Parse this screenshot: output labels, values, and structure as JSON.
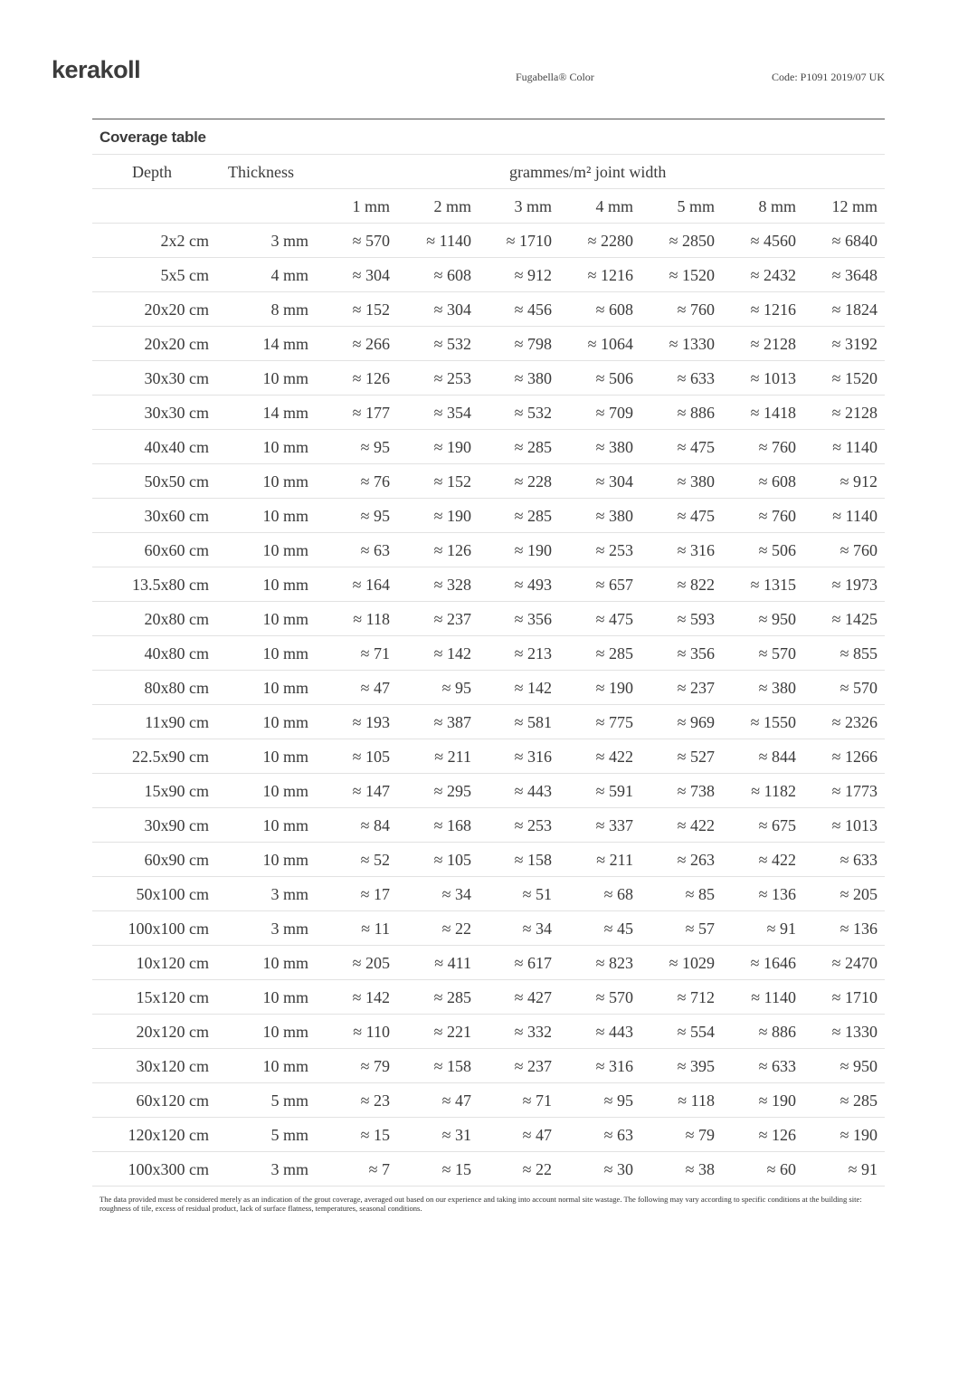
{
  "header": {
    "logo": "kerakoll",
    "product": "Fugabella® Color",
    "code": "Code: P1091 2019/07 UK"
  },
  "table": {
    "title": "Coverage table",
    "col_depth": "Depth",
    "col_thickness": "Thickness",
    "col_group": "grammes/m² joint width",
    "widths": [
      "1 mm",
      "2 mm",
      "3 mm",
      "4 mm",
      "5 mm",
      "8 mm",
      "12 mm"
    ],
    "rows": [
      {
        "depth": "2x2 cm",
        "thickness": "3 mm",
        "values": [
          "≈ 570",
          "≈ 1140",
          "≈ 1710",
          "≈ 2280",
          "≈ 2850",
          "≈ 4560",
          "≈ 6840"
        ]
      },
      {
        "depth": "5x5 cm",
        "thickness": "4 mm",
        "values": [
          "≈ 304",
          "≈ 608",
          "≈ 912",
          "≈ 1216",
          "≈ 1520",
          "≈ 2432",
          "≈ 3648"
        ]
      },
      {
        "depth": "20x20 cm",
        "thickness": "8 mm",
        "values": [
          "≈ 152",
          "≈ 304",
          "≈ 456",
          "≈ 608",
          "≈ 760",
          "≈ 1216",
          "≈ 1824"
        ]
      },
      {
        "depth": "20x20 cm",
        "thickness": "14 mm",
        "values": [
          "≈ 266",
          "≈ 532",
          "≈ 798",
          "≈ 1064",
          "≈ 1330",
          "≈ 2128",
          "≈ 3192"
        ]
      },
      {
        "depth": "30x30 cm",
        "thickness": "10 mm",
        "values": [
          "≈ 126",
          "≈ 253",
          "≈ 380",
          "≈ 506",
          "≈ 633",
          "≈ 1013",
          "≈ 1520"
        ]
      },
      {
        "depth": "30x30 cm",
        "thickness": "14 mm",
        "values": [
          "≈ 177",
          "≈ 354",
          "≈ 532",
          "≈ 709",
          "≈ 886",
          "≈ 1418",
          "≈ 2128"
        ]
      },
      {
        "depth": "40x40 cm",
        "thickness": "10 mm",
        "values": [
          "≈ 95",
          "≈ 190",
          "≈ 285",
          "≈ 380",
          "≈ 475",
          "≈ 760",
          "≈ 1140"
        ]
      },
      {
        "depth": "50x50 cm",
        "thickness": "10 mm",
        "values": [
          "≈ 76",
          "≈ 152",
          "≈ 228",
          "≈ 304",
          "≈ 380",
          "≈ 608",
          "≈ 912"
        ]
      },
      {
        "depth": "30x60 cm",
        "thickness": "10 mm",
        "values": [
          "≈ 95",
          "≈ 190",
          "≈ 285",
          "≈ 380",
          "≈ 475",
          "≈ 760",
          "≈ 1140"
        ]
      },
      {
        "depth": "60x60 cm",
        "thickness": "10 mm",
        "values": [
          "≈ 63",
          "≈ 126",
          "≈ 190",
          "≈ 253",
          "≈ 316",
          "≈ 506",
          "≈ 760"
        ]
      },
      {
        "depth": "13.5x80 cm",
        "thickness": "10 mm",
        "values": [
          "≈ 164",
          "≈ 328",
          "≈ 493",
          "≈ 657",
          "≈ 822",
          "≈ 1315",
          "≈ 1973"
        ]
      },
      {
        "depth": "20x80 cm",
        "thickness": "10 mm",
        "values": [
          "≈ 118",
          "≈ 237",
          "≈ 356",
          "≈ 475",
          "≈ 593",
          "≈ 950",
          "≈ 1425"
        ]
      },
      {
        "depth": "40x80 cm",
        "thickness": "10 mm",
        "values": [
          "≈ 71",
          "≈ 142",
          "≈ 213",
          "≈ 285",
          "≈ 356",
          "≈ 570",
          "≈ 855"
        ]
      },
      {
        "depth": "80x80 cm",
        "thickness": "10 mm",
        "values": [
          "≈ 47",
          "≈ 95",
          "≈ 142",
          "≈ 190",
          "≈ 237",
          "≈ 380",
          "≈ 570"
        ]
      },
      {
        "depth": "11x90 cm",
        "thickness": "10 mm",
        "values": [
          "≈ 193",
          "≈ 387",
          "≈ 581",
          "≈ 775",
          "≈ 969",
          "≈ 1550",
          "≈ 2326"
        ]
      },
      {
        "depth": "22.5x90 cm",
        "thickness": "10 mm",
        "values": [
          "≈ 105",
          "≈ 211",
          "≈ 316",
          "≈ 422",
          "≈ 527",
          "≈ 844",
          "≈ 1266"
        ]
      },
      {
        "depth": "15x90 cm",
        "thickness": "10 mm",
        "values": [
          "≈ 147",
          "≈ 295",
          "≈ 443",
          "≈ 591",
          "≈ 738",
          "≈ 1182",
          "≈ 1773"
        ]
      },
      {
        "depth": "30x90 cm",
        "thickness": "10 mm",
        "values": [
          "≈ 84",
          "≈ 168",
          "≈ 253",
          "≈ 337",
          "≈ 422",
          "≈ 675",
          "≈ 1013"
        ]
      },
      {
        "depth": "60x90 cm",
        "thickness": "10 mm",
        "values": [
          "≈ 52",
          "≈ 105",
          "≈ 158",
          "≈ 211",
          "≈ 263",
          "≈ 422",
          "≈ 633"
        ]
      },
      {
        "depth": "50x100 cm",
        "thickness": "3 mm",
        "values": [
          "≈ 17",
          "≈ 34",
          "≈ 51",
          "≈ 68",
          "≈ 85",
          "≈ 136",
          "≈ 205"
        ]
      },
      {
        "depth": "100x100 cm",
        "thickness": "3 mm",
        "values": [
          "≈ 11",
          "≈ 22",
          "≈ 34",
          "≈ 45",
          "≈ 57",
          "≈ 91",
          "≈ 136"
        ]
      },
      {
        "depth": "10x120 cm",
        "thickness": "10 mm",
        "values": [
          "≈ 205",
          "≈ 411",
          "≈ 617",
          "≈ 823",
          "≈ 1029",
          "≈ 1646",
          "≈ 2470"
        ]
      },
      {
        "depth": "15x120 cm",
        "thickness": "10 mm",
        "values": [
          "≈ 142",
          "≈ 285",
          "≈ 427",
          "≈ 570",
          "≈ 712",
          "≈ 1140",
          "≈ 1710"
        ]
      },
      {
        "depth": "20x120 cm",
        "thickness": "10 mm",
        "values": [
          "≈ 110",
          "≈ 221",
          "≈ 332",
          "≈ 443",
          "≈ 554",
          "≈ 886",
          "≈ 1330"
        ]
      },
      {
        "depth": "30x120 cm",
        "thickness": "10 mm",
        "values": [
          "≈ 79",
          "≈ 158",
          "≈ 237",
          "≈ 316",
          "≈ 395",
          "≈ 633",
          "≈ 950"
        ]
      },
      {
        "depth": "60x120 cm",
        "thickness": "5 mm",
        "values": [
          "≈ 23",
          "≈ 47",
          "≈ 71",
          "≈ 95",
          "≈ 118",
          "≈ 190",
          "≈ 285"
        ]
      },
      {
        "depth": "120x120 cm",
        "thickness": "5 mm",
        "values": [
          "≈ 15",
          "≈ 31",
          "≈ 47",
          "≈ 63",
          "≈ 79",
          "≈ 126",
          "≈ 190"
        ]
      },
      {
        "depth": "100x300 cm",
        "thickness": "3 mm",
        "values": [
          "≈ 7",
          "≈ 15",
          "≈ 22",
          "≈ 30",
          "≈ 38",
          "≈ 60",
          "≈ 91"
        ]
      }
    ]
  },
  "footnote": "The data provided must be considered merely as an indication of the grout coverage, averaged out based on our experience and taking into account normal site wastage. The following may vary according to specific conditions at the building site: roughness of tile, excess of residual product, lack of surface flatness, temperatures, seasonal conditions."
}
